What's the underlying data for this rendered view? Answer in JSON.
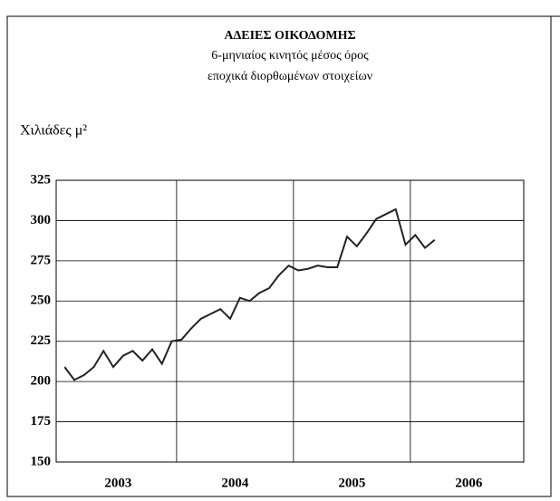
{
  "chart_data": {
    "type": "line",
    "title": "ΑΔΕΙΕΣ ΟΙΚΟΔΟΜΗΣ",
    "subtitle": [
      "6-μηνιαίος κινητός μέσος όρος",
      "εποχικά διορθωμένων στοιχείων"
    ],
    "y_label": "Χιλιάδες μ²",
    "x": [
      2003.042,
      2003.125,
      2003.208,
      2003.292,
      2003.375,
      2003.458,
      2003.542,
      2003.625,
      2003.708,
      2003.792,
      2003.875,
      2003.958,
      2004.042,
      2004.125,
      2004.208,
      2004.292,
      2004.375,
      2004.458,
      2004.542,
      2004.625,
      2004.708,
      2004.792,
      2004.875,
      2004.958,
      2005.042,
      2005.125,
      2005.208,
      2005.292,
      2005.375,
      2005.458,
      2005.542,
      2005.625,
      2005.708,
      2005.792,
      2005.875,
      2005.958,
      2006.042,
      2006.125,
      2006.208
    ],
    "series": [
      {
        "color": "#222222",
        "values": [
          209,
          201,
          204,
          209,
          219,
          209,
          216,
          219,
          213,
          220,
          211,
          225,
          226,
          233,
          239,
          242,
          245,
          239,
          252,
          250,
          255,
          258,
          266,
          272,
          269,
          270,
          272,
          271,
          271,
          290,
          284,
          292,
          301,
          304,
          307,
          285,
          291,
          283,
          288
        ]
      }
    ],
    "xlim": [
      2002.97,
      2006.97
    ],
    "xticks": [
      {
        "value": 2003.5,
        "label": "2003"
      },
      {
        "value": 2004.5,
        "label": "2004"
      },
      {
        "value": 2005.5,
        "label": "2005"
      },
      {
        "value": 2006.5,
        "label": "2006"
      }
    ],
    "x_grid": [
      2004,
      2005,
      2006
    ],
    "ylim": [
      150,
      325
    ],
    "yticks": [
      150,
      175,
      200,
      225,
      250,
      275,
      300,
      325
    ],
    "grid": true
  }
}
